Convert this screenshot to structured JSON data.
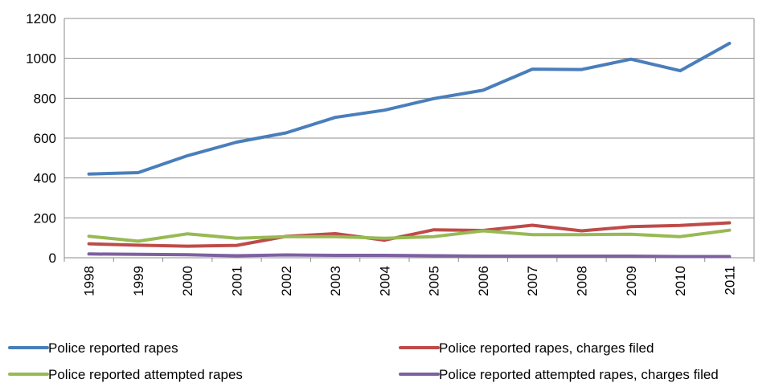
{
  "chart_data": {
    "type": "line",
    "title": "",
    "xlabel": "",
    "ylabel": "",
    "x": [
      "1998",
      "1999",
      "2000",
      "2001",
      "2002",
      "2003",
      "2004",
      "2005",
      "2006",
      "2007",
      "2008",
      "2009",
      "2010",
      "2011"
    ],
    "ylim": [
      0,
      1200
    ],
    "yticks": [
      0,
      200,
      400,
      600,
      800,
      1000,
      1200
    ],
    "grid": true,
    "legend": "bottom",
    "series": [
      {
        "name": "Police reported rapes",
        "color": "#4a7ebb",
        "values": [
          420,
          427,
          512,
          580,
          626,
          704,
          740,
          798,
          840,
          946,
          944,
          996,
          938,
          1075
        ]
      },
      {
        "name": "Police reported rapes, charges filed",
        "color": "#be4b48",
        "values": [
          70,
          63,
          58,
          62,
          107,
          121,
          88,
          140,
          137,
          163,
          135,
          156,
          162,
          175
        ]
      },
      {
        "name": "Police reported attempted rapes",
        "color": "#98b954",
        "values": [
          108,
          83,
          120,
          98,
          106,
          106,
          98,
          106,
          135,
          116,
          116,
          118,
          106,
          138
        ]
      },
      {
        "name": "Police reported attempted rapes, charges filed",
        "color": "#7d60a0",
        "values": [
          19,
          17,
          15,
          10,
          14,
          12,
          12,
          10,
          8,
          8,
          8,
          8,
          6,
          6
        ]
      }
    ]
  }
}
